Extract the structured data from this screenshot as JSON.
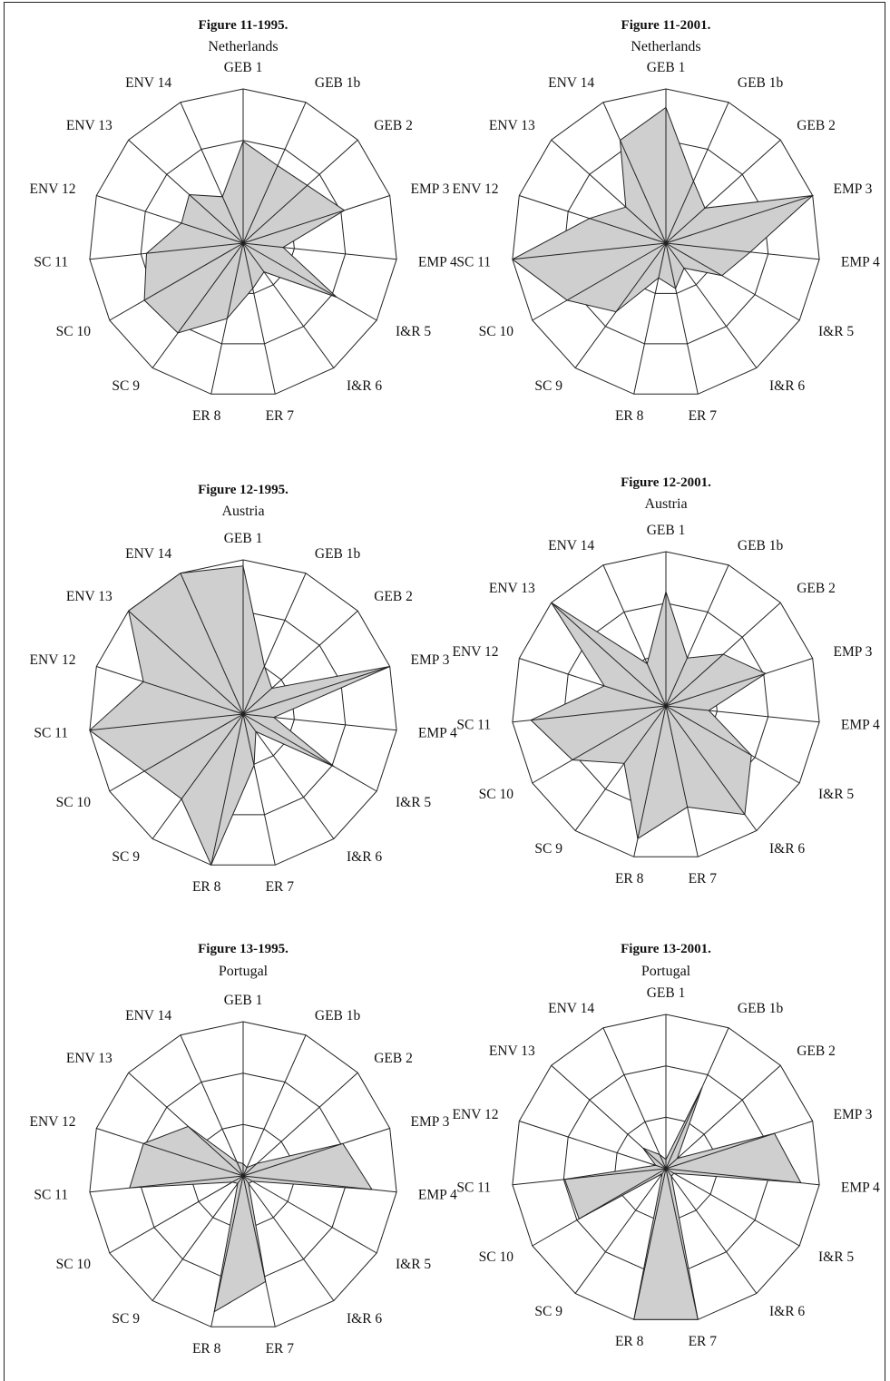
{
  "fill_color": "#cfcfcf",
  "line_color": "#222222",
  "chart_data": [
    {
      "type": "radar",
      "title": "Figure 11-1995.",
      "subtitle": "Netherlands",
      "axes": [
        "GEB 1",
        "GEB 1b",
        "GEB 2",
        "EMP 3",
        "EMP 4",
        "I&R 5",
        "I&R 6",
        "ER 7",
        "ER 8",
        "SC 9",
        "SC 10",
        "SC 11",
        "ENV 12",
        "ENV 13",
        "ENV 14"
      ],
      "rings": 3,
      "range": [
        0,
        1
      ],
      "values": [
        0.66,
        0.55,
        0.56,
        0.69,
        0.26,
        0.7,
        0.23,
        0.3,
        0.5,
        0.72,
        0.74,
        0.63,
        0.42,
        0.47,
        0.33
      ]
    },
    {
      "type": "radar",
      "title": "Figure 11-2001.",
      "subtitle": "Netherlands",
      "axes": [
        "GEB 1",
        "GEB 1b",
        "GEB 2",
        "EMP 3",
        "EMP 4",
        "I&R 5",
        "I&R 6",
        "ER 7",
        "ER 8",
        "SC 9",
        "SC 10",
        "SC 11",
        "ENV 12",
        "ENV 13",
        "ENV 14"
      ],
      "rings": 3,
      "range": [
        0,
        1
      ],
      "values": [
        0.88,
        0.44,
        0.34,
        1.0,
        0.55,
        0.42,
        0.2,
        0.3,
        0.23,
        0.55,
        0.74,
        1.0,
        0.52,
        0.35,
        0.73
      ]
    },
    {
      "type": "radar",
      "title": "Figure 12-1995.",
      "subtitle": "Austria",
      "axes": [
        "GEB 1",
        "GEB 1b",
        "GEB 2",
        "EMP 3",
        "EMP 4",
        "I&R 5",
        "I&R 6",
        "ER 7",
        "ER 8",
        "SC 9",
        "SC 10",
        "SC 11",
        "ENV 12",
        "ENV 13",
        "ENV 14"
      ],
      "rings": 3,
      "range": [
        0,
        1
      ],
      "values": [
        0.96,
        0.34,
        0.25,
        1.0,
        0.2,
        0.68,
        0.14,
        0.34,
        1.0,
        0.68,
        0.74,
        1.0,
        0.68,
        1.0,
        1.0
      ]
    },
    {
      "type": "radar",
      "title": "Figure 12-2001.",
      "subtitle": "Austria",
      "axes": [
        "GEB 1",
        "GEB 1b",
        "GEB 2",
        "EMP 3",
        "EMP 4",
        "I&R 5",
        "I&R 6",
        "ER 7",
        "ER 8",
        "SC 9",
        "SC 10",
        "SC 11",
        "ENV 12",
        "ENV 13",
        "ENV 14"
      ],
      "rings": 3,
      "range": [
        0,
        1
      ],
      "values": [
        0.74,
        0.34,
        0.5,
        0.68,
        0.28,
        0.64,
        0.87,
        0.67,
        0.88,
        0.46,
        0.7,
        0.88,
        0.42,
        1.0,
        0.3
      ]
    },
    {
      "type": "radar",
      "title": "Figure 13-1995.",
      "subtitle": "Portugal",
      "axes": [
        "GEB 1",
        "GEB 1b",
        "GEB 2",
        "EMP 3",
        "EMP 4",
        "I&R 5",
        "I&R 6",
        "ER 7",
        "ER 8",
        "SC 9",
        "SC 10",
        "SC 11",
        "ENV 12",
        "ENV 13",
        "ENV 14"
      ],
      "rings": 3,
      "range": [
        0,
        1
      ],
      "values": [
        0.08,
        0.06,
        0.12,
        0.68,
        0.84,
        0.07,
        0.06,
        0.7,
        0.9,
        0.06,
        0.08,
        0.74,
        0.68,
        0.48,
        0.1
      ]
    },
    {
      "type": "radar",
      "title": "Figure 13-2001.",
      "subtitle": "Portugal",
      "axes": [
        "GEB 1",
        "GEB 1b",
        "GEB 2",
        "EMP 3",
        "EMP 4",
        "I&R 5",
        "I&R 6",
        "ER 7",
        "ER 8",
        "SC 9",
        "SC 10",
        "SC 11",
        "ENV 12",
        "ENV 13",
        "ENV 14"
      ],
      "rings": 3,
      "range": [
        0,
        1
      ],
      "values": [
        0.06,
        0.58,
        0.1,
        0.74,
        0.88,
        0.06,
        0.06,
        1.0,
        1.0,
        0.04,
        0.65,
        0.66,
        0.07,
        0.2,
        0.1
      ]
    }
  ]
}
